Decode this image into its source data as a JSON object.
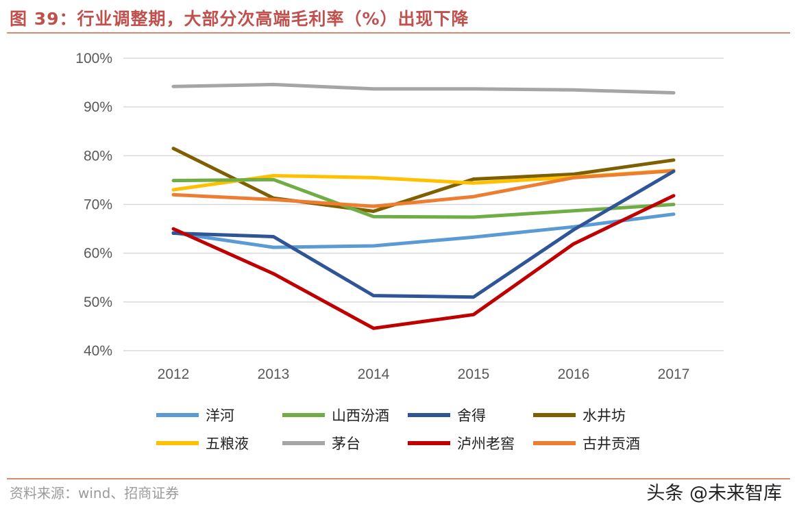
{
  "header": {
    "title": "图 39：行业调整期，大部分次高端毛利率（%）出现下降"
  },
  "footer": {
    "source": "资料来源：wind、招商证券",
    "watermark": "头条 @未来智库"
  },
  "chart_data": {
    "type": "line",
    "title": "",
    "xlabel": "",
    "ylabel": "",
    "categories": [
      "2012",
      "2013",
      "2014",
      "2015",
      "2016",
      "2017"
    ],
    "ylim": [
      40,
      100
    ],
    "yticks": [
      40,
      50,
      60,
      70,
      80,
      90,
      100
    ],
    "ytick_labels": [
      "40%",
      "50%",
      "60%",
      "70%",
      "80%",
      "90%",
      "100%"
    ],
    "grid": true,
    "legend_position": "bottom",
    "series": [
      {
        "name": "茅台",
        "color": "#A5A5A5",
        "values": [
          94.2,
          94.6,
          93.7,
          93.7,
          93.5,
          92.9
        ]
      },
      {
        "name": "水井坊",
        "color": "#7F6000",
        "values": [
          81.5,
          71.3,
          68.6,
          75.2,
          76.2,
          79.1
        ]
      },
      {
        "name": "五粮液",
        "color": "#FFC000",
        "values": [
          73.0,
          75.9,
          75.5,
          74.4,
          75.6,
          77.0
        ]
      },
      {
        "name": "山西汾酒",
        "color": "#70AD47",
        "values": [
          74.9,
          75.1,
          67.5,
          67.4,
          68.7,
          70.0
        ]
      },
      {
        "name": "古井贡酒",
        "color": "#ED7D31",
        "values": [
          72.0,
          71.0,
          69.6,
          71.6,
          75.5,
          76.9
        ]
      },
      {
        "name": "洋河",
        "color": "#5B9BD5",
        "values": [
          64.2,
          61.2,
          61.5,
          63.3,
          65.4,
          68.0
        ]
      },
      {
        "name": "舍得",
        "color": "#2F5597",
        "values": [
          64.1,
          63.4,
          51.3,
          51.0,
          64.8,
          76.8
        ]
      },
      {
        "name": "泸州老窖",
        "color": "#C00000",
        "values": [
          65.0,
          55.8,
          44.6,
          47.4,
          61.9,
          71.8
        ]
      }
    ],
    "legend": [
      {
        "name": "洋河",
        "color": "#5B9BD5"
      },
      {
        "name": "山西汾酒",
        "color": "#70AD47"
      },
      {
        "name": "舍得",
        "color": "#2F5597"
      },
      {
        "name": "水井坊",
        "color": "#7F6000"
      },
      {
        "name": "五粮液",
        "color": "#FFC000"
      },
      {
        "name": "茅台",
        "color": "#A5A5A5"
      },
      {
        "name": "泸州老窖",
        "color": "#C00000"
      },
      {
        "name": "古井贡酒",
        "color": "#ED7D31"
      }
    ]
  }
}
